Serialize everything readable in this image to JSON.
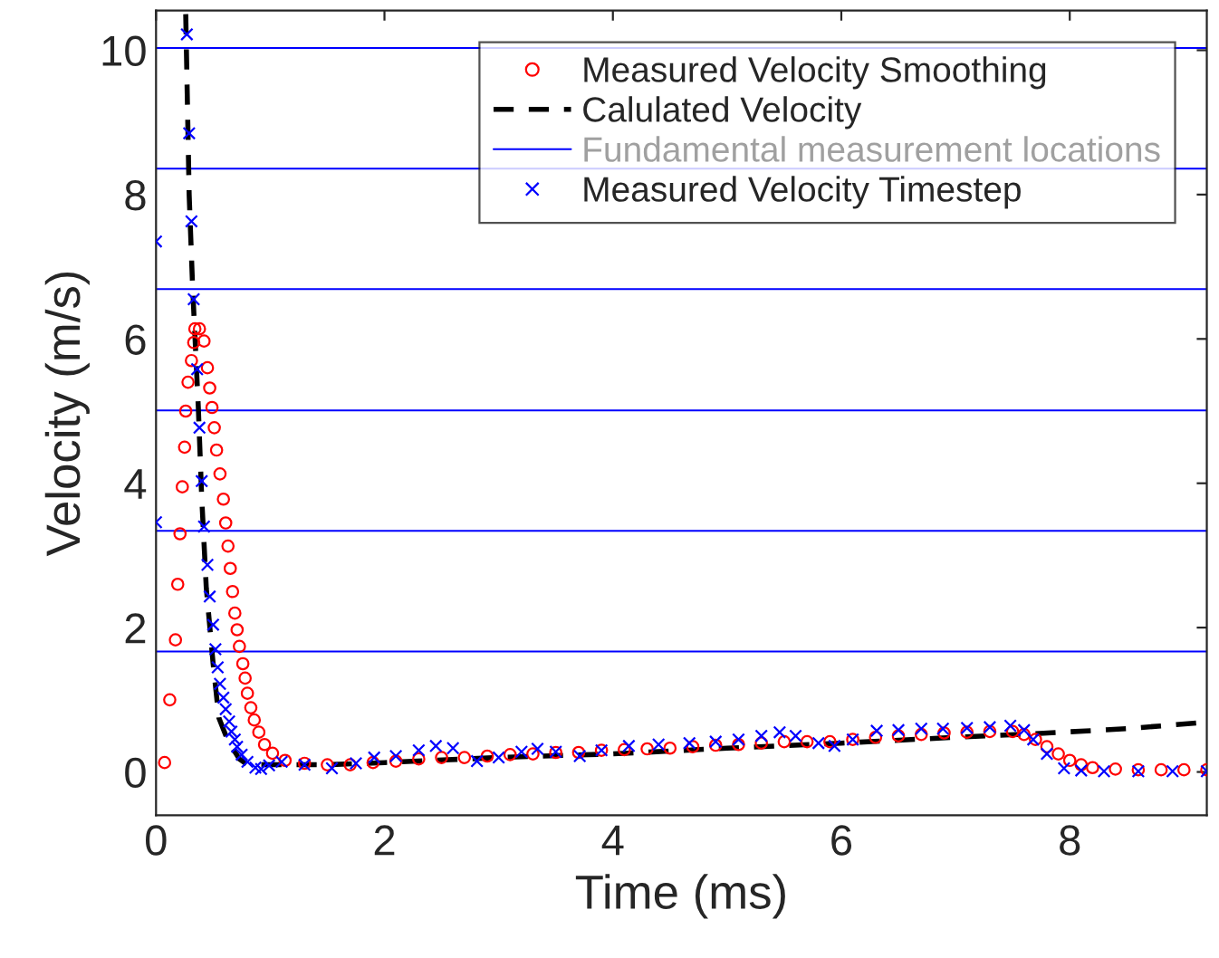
{
  "chart_data": {
    "type": "scatter",
    "xlabel": "Time (ms)",
    "ylabel": "Velocity (m/s)",
    "xlim": [
      0,
      9.2
    ],
    "ylim": [
      -0.6,
      10.55
    ],
    "xticks": [
      0,
      2,
      4,
      6,
      8
    ],
    "yticks": [
      0,
      2,
      4,
      6,
      8,
      10
    ],
    "grid": false,
    "legend": "top right",
    "series": [
      {
        "name": "Measured Velocity Smoothing",
        "marker": "circle",
        "color": "#ff0000",
        "x": [
          0.075,
          0.12,
          0.17,
          0.19,
          0.21,
          0.23,
          0.25,
          0.26,
          0.28,
          0.31,
          0.33,
          0.34,
          0.38,
          0.42,
          0.45,
          0.47,
          0.49,
          0.51,
          0.53,
          0.56,
          0.59,
          0.61,
          0.63,
          0.65,
          0.67,
          0.69,
          0.71,
          0.73,
          0.76,
          0.78,
          0.8,
          0.83,
          0.86,
          0.9,
          0.95,
          1.02,
          1.13,
          1.3,
          1.5,
          1.7,
          1.9,
          2.1,
          2.3,
          2.5,
          2.7,
          2.9,
          3.1,
          3.3,
          3.5,
          3.7,
          3.9,
          4.1,
          4.3,
          4.5,
          4.7,
          4.9,
          5.1,
          5.3,
          5.5,
          5.7,
          5.9,
          6.1,
          6.3,
          6.5,
          6.7,
          6.9,
          7.1,
          7.3,
          7.5,
          7.6,
          7.7,
          7.8,
          7.9,
          8.0,
          8.1,
          8.2,
          8.4,
          8.6,
          8.8,
          9.0,
          9.2
        ],
        "values": [
          0.13,
          1.0,
          1.83,
          2.6,
          3.3,
          3.95,
          4.5,
          5.0,
          5.4,
          5.7,
          5.95,
          6.14,
          6.14,
          5.97,
          5.6,
          5.32,
          5.05,
          4.77,
          4.46,
          4.13,
          3.78,
          3.45,
          3.13,
          2.82,
          2.5,
          2.2,
          1.97,
          1.74,
          1.5,
          1.3,
          1.09,
          0.89,
          0.72,
          0.55,
          0.38,
          0.26,
          0.16,
          0.12,
          0.1,
          0.1,
          0.13,
          0.15,
          0.18,
          0.2,
          0.2,
          0.22,
          0.24,
          0.25,
          0.27,
          0.27,
          0.3,
          0.31,
          0.32,
          0.33,
          0.35,
          0.37,
          0.38,
          0.4,
          0.42,
          0.42,
          0.42,
          0.45,
          0.48,
          0.5,
          0.52,
          0.54,
          0.55,
          0.56,
          0.56,
          0.52,
          0.45,
          0.35,
          0.25,
          0.16,
          0.1,
          0.06,
          0.04,
          0.03,
          0.03,
          0.03,
          0.03
        ]
      },
      {
        "name": "Calulated Velocity",
        "type": "line",
        "marker": "none",
        "line_style": "dashed",
        "color": "#000000",
        "x": [
          0.26,
          0.29,
          0.32,
          0.37,
          0.4,
          0.44,
          0.5,
          0.55,
          0.63,
          0.73,
          0.8,
          1.5,
          2,
          3,
          4,
          5,
          6,
          7,
          7.7,
          8.5,
          9.2
        ],
        "values": [
          10.5,
          8.0,
          6.73,
          5.06,
          3.8,
          2.55,
          1.5,
          0.75,
          0.43,
          0.18,
          0.1,
          0.1,
          0.13,
          0.2,
          0.25,
          0.33,
          0.4,
          0.48,
          0.53,
          0.6,
          0.69
        ]
      },
      {
        "name": "Measured Velocity Timestep",
        "marker": "cross",
        "color": "#0000ff",
        "x": [
          0.0,
          0.0,
          0.27,
          0.29,
          0.31,
          0.33,
          0.36,
          0.38,
          0.4,
          0.42,
          0.45,
          0.47,
          0.5,
          0.52,
          0.54,
          0.56,
          0.59,
          0.61,
          0.64,
          0.66,
          0.69,
          0.71,
          0.75,
          0.8,
          0.87,
          0.92,
          0.99,
          1.1,
          1.3,
          1.54,
          1.75,
          1.91,
          2.1,
          2.3,
          2.45,
          2.6,
          2.81,
          3.0,
          3.2,
          3.34,
          3.5,
          3.71,
          3.9,
          4.14,
          4.4,
          4.67,
          4.9,
          5.1,
          5.3,
          5.46,
          5.6,
          5.8,
          5.94,
          6.1,
          6.31,
          6.5,
          6.7,
          6.89,
          7.1,
          7.3,
          7.48,
          7.6,
          7.68,
          7.8,
          7.95,
          8.1,
          8.3,
          8.6,
          8.9,
          9.2
        ],
        "values": [
          7.35,
          3.46,
          10.22,
          8.85,
          7.63,
          6.55,
          5.58,
          4.77,
          4.03,
          3.4,
          2.87,
          2.43,
          2.04,
          1.7,
          1.45,
          1.22,
          1.03,
          0.87,
          0.7,
          0.56,
          0.45,
          0.35,
          0.24,
          0.14,
          0.06,
          0.04,
          0.09,
          0.14,
          0.1,
          0.05,
          0.12,
          0.2,
          0.22,
          0.3,
          0.36,
          0.33,
          0.15,
          0.2,
          0.28,
          0.32,
          0.28,
          0.22,
          0.3,
          0.36,
          0.38,
          0.4,
          0.42,
          0.45,
          0.5,
          0.55,
          0.5,
          0.4,
          0.36,
          0.45,
          0.57,
          0.58,
          0.6,
          0.6,
          0.61,
          0.62,
          0.64,
          0.58,
          0.45,
          0.25,
          0.05,
          0.02,
          0.01,
          0.01,
          0.01,
          0.01
        ]
      }
    ],
    "ref_lines": [
      {
        "axis": "y",
        "value": 10.03,
        "color": "#0000ff",
        "label": "Fundamental measurement locations"
      },
      {
        "axis": "y",
        "value": 8.36,
        "color": "#0000ff"
      },
      {
        "axis": "y",
        "value": 6.69,
        "color": "#0000ff"
      },
      {
        "axis": "y",
        "value": 5.01,
        "color": "#0000ff"
      },
      {
        "axis": "y",
        "value": 3.34,
        "color": "#0000ff"
      },
      {
        "axis": "y",
        "value": 1.67,
        "color": "#0000ff"
      }
    ]
  }
}
